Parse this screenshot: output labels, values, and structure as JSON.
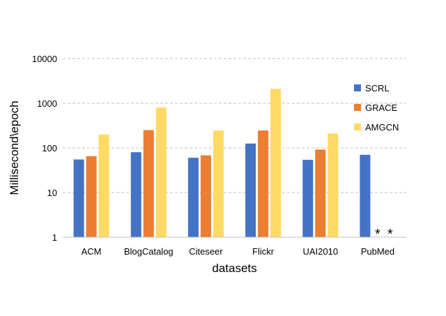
{
  "chart_data": {
    "type": "bar",
    "xlabel": "datasets",
    "ylabel": "Millisecond\\epoch",
    "yscale": "log",
    "ylim": [
      1,
      10000
    ],
    "yticks": [
      "1",
      "10",
      "100",
      "1000",
      "10000"
    ],
    "grid": "horizontal dashed",
    "legend_position": "right",
    "categories": [
      "ACM",
      "BlogCatalog",
      "Citeseer",
      "Flickr",
      "UAI2010",
      "PubMed"
    ],
    "series": [
      {
        "name": "SCRL",
        "color": "#4472C4",
        "values": [
          55,
          80,
          60,
          125,
          54,
          70
        ]
      },
      {
        "name": "GRACE",
        "color": "#ED7D31",
        "values": [
          65,
          250,
          68,
          245,
          92,
          null
        ]
      },
      {
        "name": "AMGCN",
        "color": "#FFD966",
        "values": [
          200,
          800,
          245,
          2100,
          210,
          null
        ]
      }
    ],
    "missing_marker": "*"
  }
}
